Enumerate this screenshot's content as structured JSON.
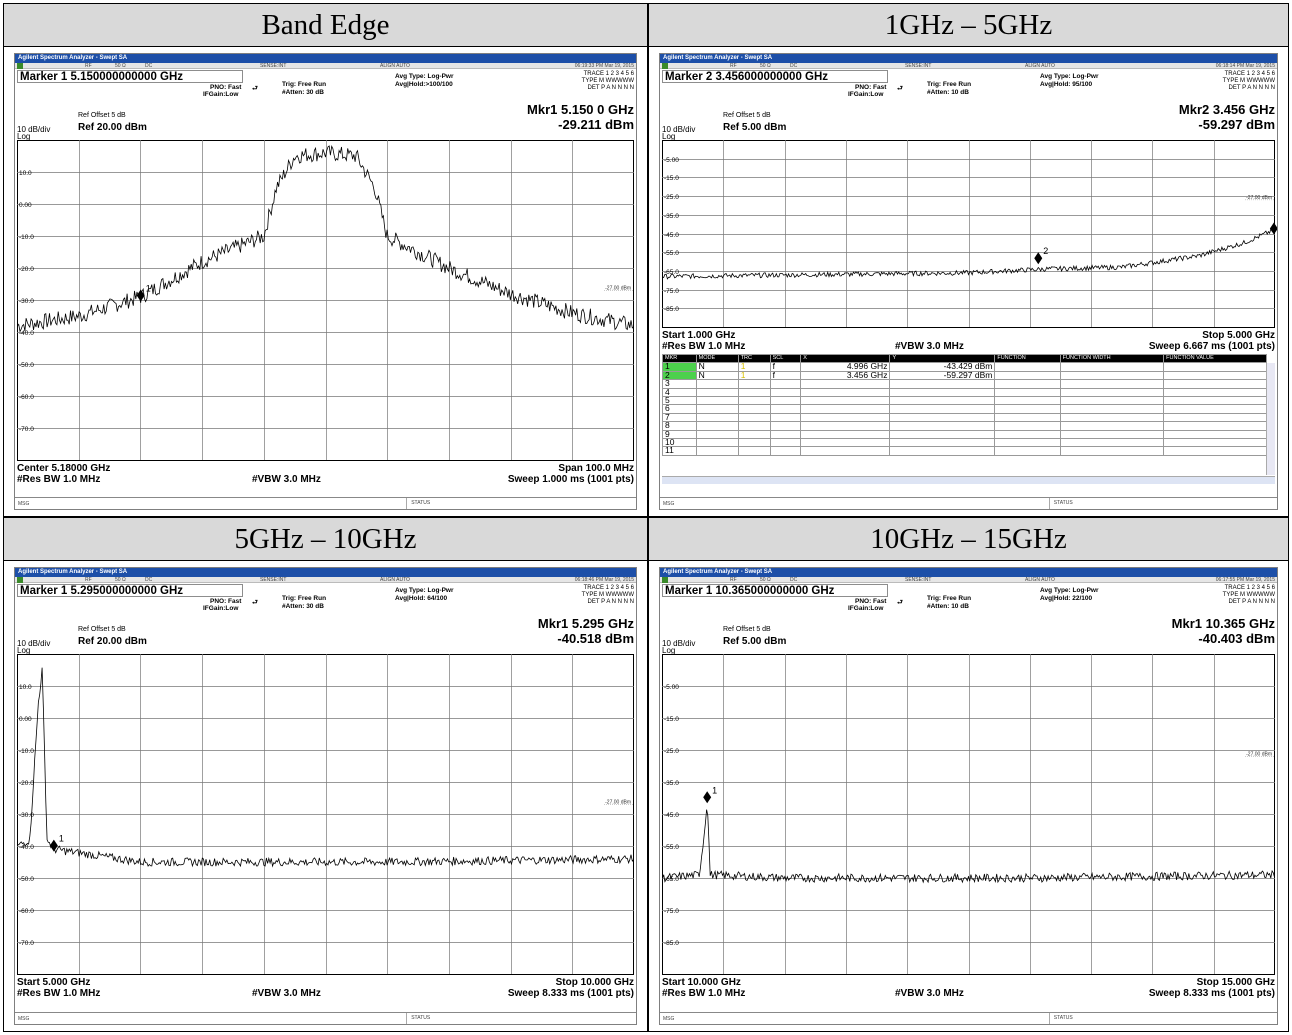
{
  "panels": [
    {
      "header": "Band Edge",
      "app_title": "Agilent Spectrum Analyzer - Swept SA",
      "status_strip": {
        "rf": "RF",
        "ohm": "50 Ω",
        "dc": "DC",
        "sense": "SENSE:INT",
        "align": "ALIGN AUTO",
        "time": "06:19:33 PM Mar 19, 2015"
      },
      "marker_line": "Marker 1 5.150000000000 GHz",
      "pno": "PNO: Fast",
      "ifgain": "IFGain:Low",
      "trig": "Trig: Free Run",
      "atten": "#Atten: 30 dB",
      "avg_type": "Avg Type: Log-Pwr",
      "avg_hold": "Avg|Hold:>100/100",
      "trace_row": "TRACE 1 2 3 4 5 6",
      "type_row": "TYPE M WWWWW",
      "det_row": "DET P A N N N N",
      "mkr_freq": "Mkr1 5.150 0 GHz",
      "mkr_amp": "-29.211 dBm",
      "ref_offset": "Ref Offset 5 dB",
      "ref_level": "Ref 20.00 dBm",
      "scale": "10 dB/div",
      "log": "Log",
      "y_ticks": [
        "10.0",
        "0.00",
        "-10.0",
        "-20.0",
        "-30.0",
        "-40.0",
        "-50.0",
        "-60.0",
        "-70.0"
      ],
      "limit_label": "-27.00 dBm",
      "marker_labels": [
        "1"
      ],
      "bottom_left": "Center 5.18000 GHz",
      "bottom_right": "Span 100.0 MHz",
      "rbw": "#Res BW 1.0 MHz",
      "vbw": "#VBW 3.0 MHz",
      "sweep": "Sweep  1.000 ms (1001 pts)",
      "msg": "MSG",
      "status": "STATUS"
    },
    {
      "header": "1GHz – 5GHz",
      "app_title": "Agilent Spectrum Analyzer - Swept SA",
      "status_strip": {
        "rf": "RF",
        "ohm": "50 Ω",
        "dc": "DC",
        "sense": "SENSE:INT",
        "align": "ALIGN AUTO",
        "time": "06:18:14 PM Mar 19, 2015"
      },
      "marker_line": "Marker 2 3.456000000000 GHz",
      "pno": "PNO: Fast",
      "ifgain": "IFGain:Low",
      "trig": "Trig: Free Run",
      "atten": "#Atten: 10 dB",
      "avg_type": "Avg Type: Log-Pwr",
      "avg_hold": "Avg|Hold: 95/100",
      "trace_row": "TRACE 1 2 3 4 5 6",
      "type_row": "TYPE M WWWWW",
      "det_row": "DET P A N N N N",
      "mkr_freq": "Mkr2 3.456 GHz",
      "mkr_amp": "-59.297 dBm",
      "ref_offset": "Ref Offset 5 dB",
      "ref_level": "Ref 5.00 dBm",
      "scale": "10 dB/div",
      "log": "Log",
      "y_ticks": [
        "-5.00",
        "-15.0",
        "-25.0",
        "-35.0",
        "-45.0",
        "-55.0",
        "-65.0",
        "-75.0",
        "-85.0"
      ],
      "limit_label": "-27.00 dBm",
      "marker_labels": [
        "1",
        "2"
      ],
      "bottom_left": "Start 1.000 GHz",
      "bottom_right": "Stop 5.000 GHz",
      "rbw": "#Res BW 1.0 MHz",
      "vbw": "#VBW 3.0 MHz",
      "sweep": "Sweep  6.667 ms (1001 pts)",
      "msg": "MSG",
      "status": "STATUS",
      "marker_table": {
        "headers": [
          "MKR",
          "MODE",
          "TRC",
          "SCL",
          "X",
          "Y",
          "FUNCTION",
          "FUNCTION WIDTH",
          "FUNCTION VALUE"
        ],
        "rows": [
          [
            "1",
            "N",
            "1",
            "f",
            "4.996 GHz",
            "-43.429 dBm",
            "",
            "",
            ""
          ],
          [
            "2",
            "N",
            "1",
            "f",
            "3.456 GHz",
            "-59.297 dBm",
            "",
            "",
            ""
          ],
          [
            "3",
            "",
            "",
            "",
            "",
            "",
            "",
            "",
            ""
          ],
          [
            "4",
            "",
            "",
            "",
            "",
            "",
            "",
            "",
            ""
          ],
          [
            "5",
            "",
            "",
            "",
            "",
            "",
            "",
            "",
            ""
          ],
          [
            "6",
            "",
            "",
            "",
            "",
            "",
            "",
            "",
            ""
          ],
          [
            "7",
            "",
            "",
            "",
            "",
            "",
            "",
            "",
            ""
          ],
          [
            "8",
            "",
            "",
            "",
            "",
            "",
            "",
            "",
            ""
          ],
          [
            "9",
            "",
            "",
            "",
            "",
            "",
            "",
            "",
            ""
          ],
          [
            "10",
            "",
            "",
            "",
            "",
            "",
            "",
            "",
            ""
          ],
          [
            "11",
            "",
            "",
            "",
            "",
            "",
            "",
            "",
            ""
          ]
        ]
      }
    },
    {
      "header": "5GHz – 10GHz",
      "app_title": "Agilent Spectrum Analyzer - Swept SA",
      "status_strip": {
        "rf": "RF",
        "ohm": "50 Ω",
        "dc": "DC",
        "sense": "SENSE:INT",
        "align": "ALIGN AUTO",
        "time": "06:18:46 PM Mar 19, 2015"
      },
      "marker_line": "Marker 1 5.295000000000 GHz",
      "pno": "PNO: Fast",
      "ifgain": "IFGain:Low",
      "trig": "Trig: Free Run",
      "atten": "#Atten: 30 dB",
      "avg_type": "Avg Type: Log-Pwr",
      "avg_hold": "Avg|Hold: 64/100",
      "trace_row": "TRACE 1 2 3 4 5 6",
      "type_row": "TYPE M WWWWW",
      "det_row": "DET P A N N N N",
      "mkr_freq": "Mkr1 5.295 GHz",
      "mkr_amp": "-40.518 dBm",
      "ref_offset": "Ref Offset 5 dB",
      "ref_level": "Ref 20.00 dBm",
      "scale": "10 dB/div",
      "log": "Log",
      "y_ticks": [
        "10.0",
        "0.00",
        "-10.0",
        "-20.0",
        "-30.0",
        "-40.0",
        "-50.0",
        "-60.0",
        "-70.0"
      ],
      "limit_label": "-27.00 dBm",
      "marker_labels": [
        "1"
      ],
      "bottom_left": "Start 5.000 GHz",
      "bottom_right": "Stop 10.000 GHz",
      "rbw": "#Res BW 1.0 MHz",
      "vbw": "#VBW 3.0 MHz",
      "sweep": "Sweep  8.333 ms (1001 pts)",
      "msg": "MSG",
      "status": "STATUS"
    },
    {
      "header": "10GHz – 15GHz",
      "app_title": "Agilent Spectrum Analyzer - Swept SA",
      "status_strip": {
        "rf": "RF",
        "ohm": "50 Ω",
        "dc": "DC",
        "sense": "SENSE:INT",
        "align": "ALIGN AUTO",
        "time": "06:17:55 PM Mar 19, 2015"
      },
      "marker_line": "Marker 1 10.365000000000 GHz",
      "pno": "PNO: Fast",
      "ifgain": "IFGain:Low",
      "trig": "Trig: Free Run",
      "atten": "#Atten: 10 dB",
      "avg_type": "Avg Type: Log-Pwr",
      "avg_hold": "Avg|Hold: 22/100",
      "trace_row": "TRACE 1 2 3 4 5 6",
      "type_row": "TYPE M WWWWW",
      "det_row": "DET P A N N N N",
      "mkr_freq": "Mkr1 10.365 GHz",
      "mkr_amp": "-40.403 dBm",
      "ref_offset": "Ref Offset 5 dB",
      "ref_level": "Ref 5.00 dBm",
      "scale": "10 dB/div",
      "log": "Log",
      "y_ticks": [
        "-5.00",
        "-15.0",
        "-25.0",
        "-35.0",
        "-45.0",
        "-55.0",
        "-65.0",
        "-75.0",
        "-85.0"
      ],
      "limit_label": "-27.00 dBm",
      "marker_labels": [
        "1"
      ],
      "bottom_left": "Start 10.000 GHz",
      "bottom_right": "Stop 15.000 GHz",
      "rbw": "#Res BW 1.0 MHz",
      "vbw": "#VBW 3.0 MHz",
      "sweep": "Sweep  8.333 ms (1001 pts)",
      "msg": "MSG",
      "status": "STATUS"
    }
  ],
  "chart_data": [
    {
      "type": "line",
      "xlabel": "",
      "ylabel": "",
      "x_range": [
        5130,
        5230
      ],
      "ylim": [
        -80,
        20
      ],
      "limit_line": -27,
      "markers": [
        {
          "label": "1",
          "x": 5150,
          "y": -29.211
        }
      ],
      "series": [
        {
          "x": [
            5130,
            5140,
            5150,
            5160,
            5170,
            5172,
            5175,
            5180,
            5185,
            5188,
            5190,
            5200,
            5210,
            5220,
            5230
          ],
          "y": [
            -38,
            -35,
            -29,
            -18,
            -10,
            5,
            15,
            16,
            15,
            5,
            -10,
            -20,
            -28,
            -34,
            -38
          ]
        }
      ]
    },
    {
      "type": "line",
      "xlabel": "",
      "ylabel": "",
      "x_range": [
        1000,
        5000
      ],
      "ylim": [
        -95,
        5
      ],
      "limit_line": -27,
      "markers": [
        {
          "label": "1",
          "x": 4996,
          "y": -43.429
        },
        {
          "label": "2",
          "x": 3456,
          "y": -59.297
        }
      ],
      "series": [
        {
          "x": [
            1000,
            2000,
            3000,
            3500,
            4000,
            4500,
            4800,
            5000
          ],
          "y": [
            -68,
            -67,
            -66,
            -64,
            -63,
            -57,
            -50,
            -43
          ]
        }
      ]
    },
    {
      "type": "line",
      "xlabel": "",
      "ylabel": "",
      "x_range": [
        5000,
        10000
      ],
      "ylim": [
        -80,
        20
      ],
      "limit_line": -27,
      "markers": [
        {
          "label": "1",
          "x": 5295,
          "y": -40.518
        }
      ],
      "series": [
        {
          "x": [
            5000,
            5100,
            5170,
            5200,
            5240,
            5295,
            6000,
            8000,
            10000
          ],
          "y": [
            -40,
            -38,
            5,
            15,
            -38,
            -41,
            -45,
            -45,
            -44
          ]
        }
      ]
    },
    {
      "type": "line",
      "xlabel": "",
      "ylabel": "",
      "x_range": [
        10000,
        15000
      ],
      "ylim": [
        -95,
        5
      ],
      "limit_line": -27,
      "markers": [
        {
          "label": "1",
          "x": 10365,
          "y": -40.403
        }
      ],
      "series": [
        {
          "x": [
            10000,
            10300,
            10345,
            10365,
            10390,
            11000,
            13000,
            15000
          ],
          "y": [
            -65,
            -64,
            -50,
            -40,
            -64,
            -65,
            -65,
            -64
          ]
        }
      ]
    }
  ]
}
